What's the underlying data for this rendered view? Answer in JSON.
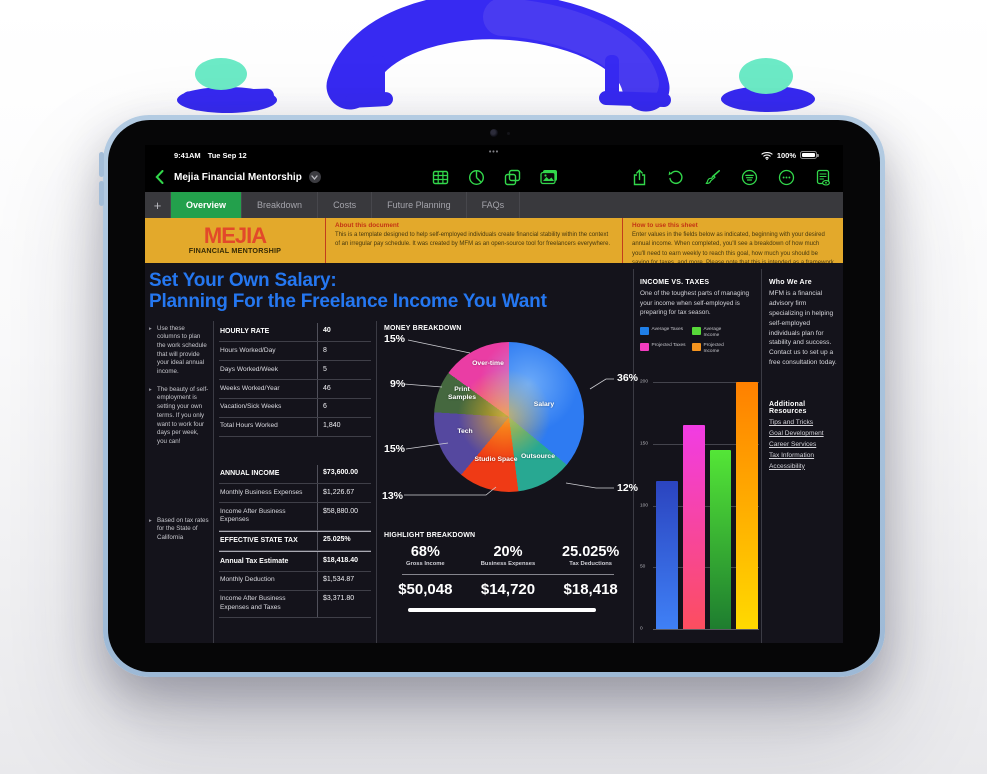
{
  "status_bar": {
    "time": "9:41AM",
    "date": "Tue Sep 12",
    "battery_pct": "100%",
    "indicator": "•••",
    "icons": [
      "wifi-icon",
      "battery-icon"
    ]
  },
  "toolbar": {
    "title": "Mejia Financial Mentorship",
    "insert_icons": [
      "insert-table-icon",
      "insert-chart-icon",
      "insert-shape-icon",
      "insert-media-icon"
    ],
    "action_icons": [
      "share-icon",
      "undo-icon",
      "paintbrush-icon",
      "view-options-icon",
      "more-icon",
      "page-options-icon"
    ]
  },
  "tab_bar": {
    "add_label": "+",
    "tabs": [
      {
        "label": "Overview",
        "active": true
      },
      {
        "label": "Breakdown",
        "active": false
      },
      {
        "label": "Costs",
        "active": false
      },
      {
        "label": "Future Planning",
        "active": false
      },
      {
        "label": "FAQs",
        "active": false
      }
    ]
  },
  "banner": {
    "logo_title": "MEJIA",
    "logo_subtitle": "FINANCIAL MENTORSHIP",
    "about_heading": "About this document",
    "about_body": "This is a template designed to help self-employed individuals create financial stability within the context of an irregular pay schedule. It was created by MFM as an open-source tool for freelancers everywhere.",
    "howto_heading": "How to use this sheet",
    "howto_body": "Enter values in the fields below as indicated, beginning with your desired annual income. When completed, you'll see a breakdown of how much you'll need to earn weekly to reach this goal, how much you should be saving for taxes, and more. Please note that this is intended as a framework and is not a substitute for working with an accredited advisor."
  },
  "sheet": {
    "title_line1": "Set Your Own Salary:",
    "title_line2": "Planning For the Freelance Income You Want",
    "notes": [
      "Use these columns to plan the work schedule that will provide your ideal annual income.",
      "The beauty of self-employment is setting your own terms. If you only want to work four days per week, you can!",
      "Based on tax rates for the State of California"
    ],
    "hours_table": {
      "header": {
        "label": "HOURLY RATE",
        "value": "40"
      },
      "rows": [
        {
          "label": "Hours Worked/Day",
          "value": "8"
        },
        {
          "label": "Days Worked/Week",
          "value": "5"
        },
        {
          "label": "Weeks Worked/Year",
          "value": "46"
        },
        {
          "label": "Vacation/Sick Weeks",
          "value": "6"
        },
        {
          "label": "Total Hours Worked",
          "value": "1,840"
        }
      ]
    },
    "income_table": {
      "rows": [
        {
          "label": "ANNUAL INCOME",
          "value": "$73,600.00",
          "bold": true
        },
        {
          "label": "Monthly Business Expenses",
          "value": "$1,226.67",
          "bold": false
        },
        {
          "label": "Income After Business Expenses",
          "value": "$58,880.00",
          "bold": false
        },
        {
          "label": "EFFECTIVE STATE TAX",
          "value": "25.025%",
          "bold": true
        },
        {
          "label": "Annual Tax Estimate",
          "value": "$18,418.40",
          "bold": true
        },
        {
          "label": "Monthly Deduction",
          "value": "$1,534.87",
          "bold": false
        },
        {
          "label": "Income After Business Expenses and Taxes",
          "value": "$3,371.80",
          "bold": false
        }
      ]
    },
    "highlight": {
      "heading": "HIGHLIGHT BREAKDOWN",
      "columns": [
        {
          "pct": "68%",
          "label": "Gross Income",
          "amount": "$50,048"
        },
        {
          "pct": "20%",
          "label": "Business Expenses",
          "amount": "$14,720"
        },
        {
          "pct": "25.025%",
          "label": "Tax Deductions",
          "amount": "$18,418"
        }
      ]
    }
  },
  "charts": {
    "pie": {
      "type": "pie",
      "title": "MONEY BREAKDOWN",
      "slices": [
        {
          "label": "Salary",
          "pct": 36,
          "pct_label": "36%",
          "color": "#2e7bf2"
        },
        {
          "label": "Outsource",
          "pct": 12,
          "pct_label": "12%",
          "color": "#28a892"
        },
        {
          "label": "Studio Space",
          "pct": 13,
          "pct_label": "13%",
          "color": "#ef3a15"
        },
        {
          "label": "Tech",
          "pct": 15,
          "pct_label": "15%",
          "color": "#55489f"
        },
        {
          "label": "Print Samples",
          "pct": 9,
          "pct_label": "9%",
          "color": "#45683f"
        },
        {
          "label": "Over-time",
          "pct": 15,
          "pct_label": "15%",
          "color": "#ea3da4"
        }
      ]
    },
    "bar": {
      "type": "bar",
      "title": "INCOME VS. TAXES",
      "intro": "One of the toughest parts of managing your income when self-employed is preparing for tax season.",
      "ymax": 200,
      "ticks": [
        "200",
        "150",
        "100",
        "50",
        "0"
      ],
      "series": [
        {
          "name": "Average Taxes",
          "value": 120,
          "color_top": "#2b44bf",
          "color_bottom": "#3f80f6"
        },
        {
          "name": "Projected Taxes",
          "value": 165,
          "color_top": "#f13ce4",
          "color_bottom": "#fc4e5f"
        },
        {
          "name": "Average Income",
          "value": 145,
          "color_top": "#54e637",
          "color_bottom": "#1e7d2f"
        },
        {
          "name": "Projected Income",
          "value": 200,
          "color_top": "#ff8000",
          "color_bottom": "#ffd900"
        }
      ],
      "legend": [
        {
          "label": "Average Taxes",
          "color": "#1f7fe8"
        },
        {
          "label": "Average Income",
          "color": "#58d83a"
        },
        {
          "label": "Projected Taxes",
          "color": "#f23cc0"
        },
        {
          "label": "Projected Income",
          "color": "#f5941f"
        }
      ]
    }
  },
  "who_we_are": {
    "heading": "Who We Are",
    "body": "MFM is a financial advisory firm specializing in helping self-employed individuals plan for stability and success. Contact us to set up a free consultation today."
  },
  "additional_resources": {
    "heading": "Additional Resources",
    "links": [
      "Tips and Tricks",
      "Goal Development",
      "Career Services",
      "Tax Information",
      "Accessibility"
    ]
  },
  "colors": {
    "accent_green": "#32d74b",
    "tab_active": "#23a04c",
    "banner_bg": "#e3a92b",
    "banner_red": "#e2492a",
    "title_blue": "#2577f0",
    "sheet_bg": "#14131b",
    "handle_paint": "#372af2",
    "handle_teal": "#6ceac6",
    "device_frame": "#a9c4de"
  }
}
